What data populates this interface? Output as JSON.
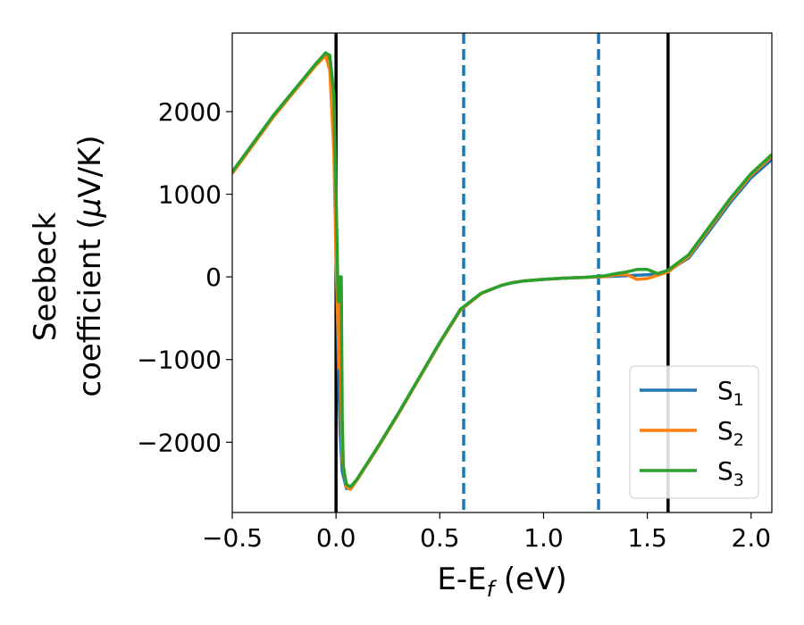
{
  "chart_data": {
    "type": "line",
    "title": "",
    "xlabel": {
      "main": "E-E",
      "sub": "f",
      "tail": " (eV)"
    },
    "ylabel": {
      "line1": "Seebeck",
      "line2_main": "coefficient  (",
      "line2_mu": "μ",
      "line2_tail": "V/K)"
    },
    "xlim": [
      -0.5,
      2.1
    ],
    "ylim": [
      -2850,
      2950
    ],
    "xticks": [
      -0.5,
      0.0,
      0.5,
      1.0,
      1.5,
      2.0
    ],
    "xtick_labels": [
      "−0.5",
      "0.0",
      "0.5",
      "1.0",
      "1.5",
      "2.0"
    ],
    "yticks": [
      -2000,
      -1000,
      0,
      1000,
      2000
    ],
    "ytick_labels": [
      "−2000",
      "−1000",
      "0",
      "1000",
      "2000"
    ],
    "grid": false,
    "legend_position": "bottom-right",
    "vertical_lines": [
      {
        "x": 0.0,
        "style": "solid",
        "color": "#000000"
      },
      {
        "x": 1.6,
        "style": "solid",
        "color": "#000000"
      },
      {
        "x": 0.615,
        "style": "dashed",
        "color": "#1f77b4"
      },
      {
        "x": 1.265,
        "style": "dashed",
        "color": "#1f77b4"
      }
    ],
    "series": [
      {
        "name": "S",
        "sub": "1",
        "color": "#1f77b4",
        "x": [
          -0.5,
          -0.3,
          -0.1,
          -0.05,
          -0.03,
          -0.01,
          0.0,
          0.01,
          0.02,
          0.03,
          0.05,
          0.07,
          0.1,
          0.2,
          0.3,
          0.4,
          0.5,
          0.6,
          0.7,
          0.8,
          0.85,
          0.9,
          1.0,
          1.1,
          1.2,
          1.3,
          1.35,
          1.4,
          1.45,
          1.5,
          1.55,
          1.6,
          1.7,
          1.8,
          1.9,
          2.0,
          2.1
        ],
        "y": [
          1270,
          1960,
          2570,
          2700,
          2600,
          1800,
          500,
          -1000,
          -1900,
          -2350,
          -2560,
          -2560,
          -2460,
          -2070,
          -1660,
          -1230,
          -800,
          -400,
          -200,
          -100,
          -70,
          -50,
          -30,
          -15,
          -5,
          5,
          10,
          15,
          20,
          25,
          40,
          70,
          230,
          560,
          900,
          1200,
          1420
        ]
      },
      {
        "name": "S",
        "sub": "2",
        "color": "#ff7f0e",
        "x": [
          -0.5,
          -0.3,
          -0.1,
          -0.05,
          -0.03,
          -0.01,
          0.0,
          0.01,
          0.015,
          0.02,
          0.025,
          0.03,
          0.05,
          0.07,
          0.1,
          0.2,
          0.3,
          0.4,
          0.5,
          0.6,
          0.7,
          0.8,
          0.85,
          0.9,
          1.0,
          1.1,
          1.2,
          1.3,
          1.35,
          1.4,
          1.45,
          1.5,
          1.55,
          1.6,
          1.7,
          1.8,
          1.9,
          2.0,
          2.1
        ],
        "y": [
          1250,
          1940,
          2550,
          2680,
          2500,
          1500,
          200,
          -700,
          -1100,
          0,
          -1600,
          -2200,
          -2540,
          -2570,
          -2460,
          -2070,
          -1660,
          -1230,
          -800,
          -400,
          -200,
          -100,
          -70,
          -50,
          -30,
          -15,
          -5,
          5,
          25,
          30,
          -30,
          -20,
          20,
          60,
          250,
          590,
          930,
          1230,
          1460
        ]
      },
      {
        "name": "S",
        "sub": "3",
        "color": "#2ca02c",
        "x": [
          -0.5,
          -0.3,
          -0.1,
          -0.05,
          -0.03,
          -0.01,
          0.0,
          0.01,
          0.02,
          0.025,
          0.03,
          0.035,
          0.05,
          0.07,
          0.1,
          0.2,
          0.3,
          0.4,
          0.5,
          0.6,
          0.7,
          0.8,
          0.85,
          0.9,
          1.0,
          1.1,
          1.2,
          1.3,
          1.35,
          1.4,
          1.45,
          1.5,
          1.55,
          1.6,
          1.7,
          1.8,
          1.9,
          2.0,
          2.1
        ],
        "y": [
          1270,
          1960,
          2570,
          2710,
          2680,
          2200,
          1000,
          -300,
          0,
          0,
          -1700,
          -2300,
          -2510,
          -2540,
          -2450,
          -2060,
          -1650,
          -1220,
          -790,
          -390,
          -195,
          -100,
          -70,
          -50,
          -30,
          -15,
          -5,
          15,
          40,
          60,
          90,
          90,
          40,
          80,
          270,
          610,
          950,
          1250,
          1480
        ]
      }
    ]
  }
}
